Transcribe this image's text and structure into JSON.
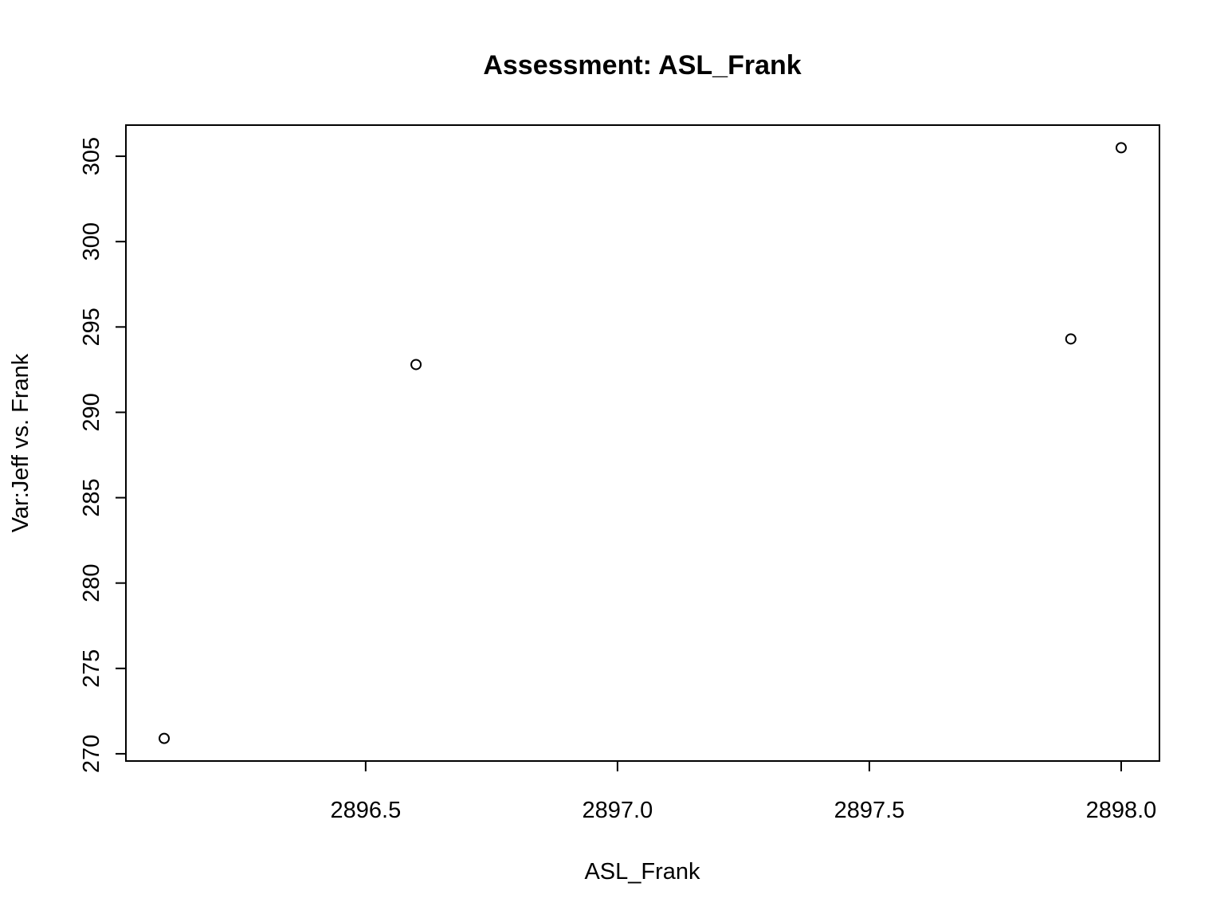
{
  "chart_data": {
    "type": "scatter",
    "title": "Assessment: ASL_Frank",
    "xlabel": "ASL_Frank",
    "ylabel": "Var:Jeff vs. Frank",
    "points": [
      {
        "x": 2896.1,
        "y": 270.9
      },
      {
        "x": 2896.6,
        "y": 292.8
      },
      {
        "x": 2897.9,
        "y": 294.3
      },
      {
        "x": 2898.0,
        "y": 305.5
      }
    ],
    "xlim": [
      2896.024,
      2898.076
    ],
    "ylim": [
      269.576,
      306.824
    ],
    "xticks": [
      {
        "value": 2896.5,
        "label": "2896.5"
      },
      {
        "value": 2897.0,
        "label": "2897.0"
      },
      {
        "value": 2897.5,
        "label": "2897.5"
      },
      {
        "value": 2898.0,
        "label": "2898.0"
      }
    ],
    "yticks": [
      {
        "value": 270,
        "label": "270"
      },
      {
        "value": 275,
        "label": "275"
      },
      {
        "value": 280,
        "label": "280"
      },
      {
        "value": 285,
        "label": "285"
      },
      {
        "value": 290,
        "label": "290"
      },
      {
        "value": 295,
        "label": "295"
      },
      {
        "value": 300,
        "label": "300"
      },
      {
        "value": 305,
        "label": "305"
      }
    ],
    "grid": false,
    "marker": "open-circle",
    "color": "#000000"
  }
}
